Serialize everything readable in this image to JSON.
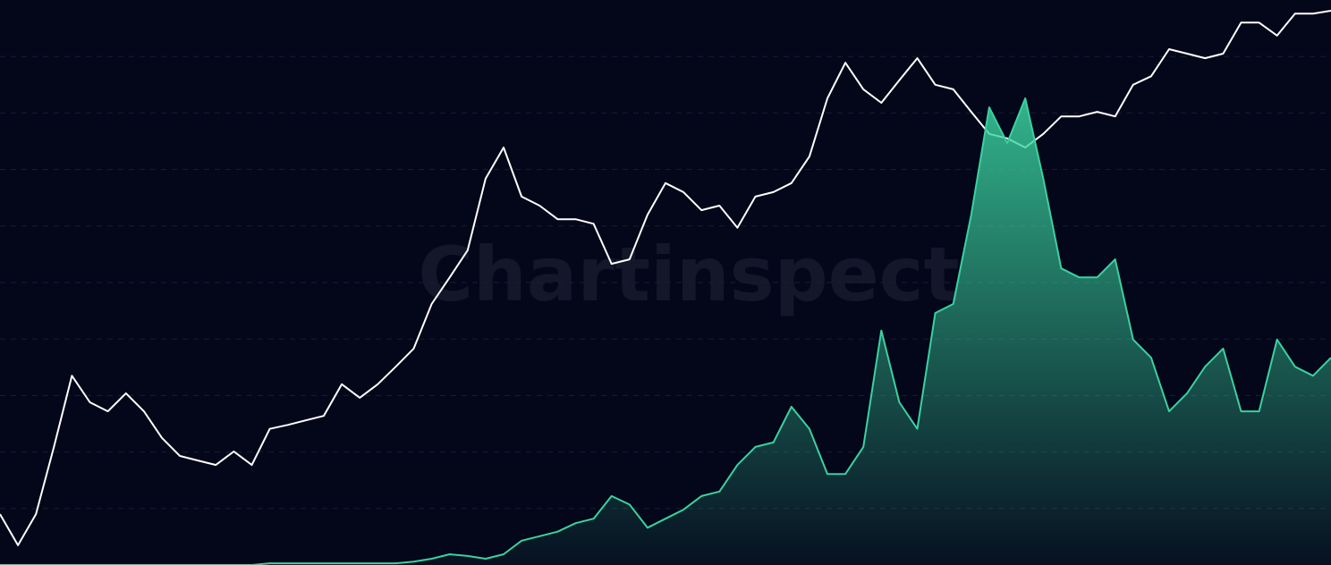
{
  "chart_data": {
    "type": "line",
    "watermark": "Chartinspect",
    "ylim": [
      0,
      10
    ],
    "yticks": [
      1,
      2,
      3,
      4,
      5,
      6,
      7,
      8,
      9
    ],
    "grid": true,
    "series": [
      {
        "color": "#ffffff",
        "fill": false,
        "values": [
          0.9,
          0.35,
          0.9,
          2.09,
          3.35,
          2.88,
          2.72,
          3.04,
          2.72,
          2.25,
          1.93,
          1.85,
          1.77,
          2.01,
          1.77,
          2.41,
          2.48,
          2.56,
          2.64,
          3.2,
          2.96,
          3.2,
          3.51,
          3.83,
          4.62,
          5.09,
          5.57,
          6.84,
          7.39,
          6.52,
          6.36,
          6.12,
          6.12,
          6.04,
          5.33,
          5.41,
          6.2,
          6.76,
          6.6,
          6.28,
          6.36,
          5.97,
          6.52,
          6.6,
          6.76,
          7.23,
          8.26,
          8.89,
          8.42,
          8.18,
          8.58,
          8.97,
          8.5,
          8.42,
          8.02,
          7.63,
          7.55,
          7.39,
          7.63,
          7.94,
          7.94,
          8.02,
          7.94,
          8.5,
          8.65,
          9.13,
          9.05,
          8.97,
          9.05,
          9.6,
          9.6,
          9.37,
          9.76,
          9.76,
          9.81
        ]
      },
      {
        "color": "#3ad29f",
        "fill": true,
        "values": [
          0,
          0,
          0,
          0,
          0,
          0,
          0,
          0,
          0,
          0,
          0,
          0,
          0,
          0,
          0,
          0.03,
          0.03,
          0.03,
          0.03,
          0.03,
          0.03,
          0.03,
          0.03,
          0.06,
          0.11,
          0.19,
          0.16,
          0.11,
          0.19,
          0.43,
          0.51,
          0.59,
          0.74,
          0.82,
          1.22,
          1.07,
          0.66,
          0.82,
          0.98,
          1.22,
          1.3,
          1.77,
          2.09,
          2.17,
          2.8,
          2.41,
          1.61,
          1.61,
          2.09,
          4.15,
          2.88,
          2.41,
          4.46,
          4.62,
          6.2,
          8.1,
          7.47,
          8.26,
          6.84,
          5.25,
          5.09,
          5.09,
          5.41,
          3.99,
          3.67,
          2.72,
          3.04,
          3.51,
          3.83,
          2.72,
          2.72,
          3.99,
          3.51,
          3.35,
          3.67
        ]
      }
    ]
  }
}
